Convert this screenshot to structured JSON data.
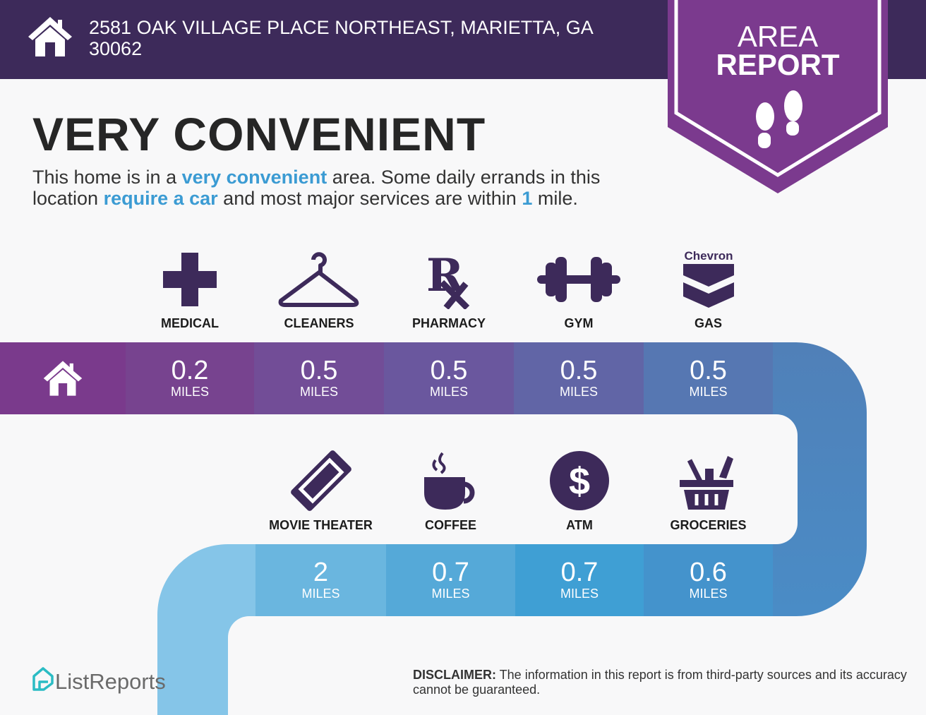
{
  "header": {
    "address": "2581 OAK VILLAGE PLACE NORTHEAST, MARIETTA, GA 30062",
    "icon": "home-icon"
  },
  "badge": {
    "line1": "AREA",
    "line2": "REPORT",
    "icon": "footprints-icon"
  },
  "rating": {
    "title": "VERY CONVENIENT",
    "desc_parts": [
      "This home is in a ",
      "very convenient",
      " area. Some daily errands in this location ",
      "require a car",
      " and most major services are within ",
      "1",
      " mile."
    ]
  },
  "unit": "MILES",
  "top_row": [
    {
      "label": "MEDICAL",
      "value": "0.2",
      "icon": "medical-cross-icon"
    },
    {
      "label": "CLEANERS",
      "value": "0.5",
      "icon": "hanger-icon"
    },
    {
      "label": "PHARMACY",
      "value": "0.5",
      "icon": "rx-icon"
    },
    {
      "label": "GYM",
      "value": "0.5",
      "icon": "dumbbell-icon"
    },
    {
      "label": "GAS",
      "value": "0.5",
      "icon": "chevron-logo-icon",
      "brand": "Chevron"
    }
  ],
  "bottom_row": [
    {
      "label": "MOVIE THEATER",
      "value": "2",
      "icon": "ticket-icon"
    },
    {
      "label": "COFFEE",
      "value": "0.7",
      "icon": "coffee-cup-icon"
    },
    {
      "label": "ATM",
      "value": "0.7",
      "icon": "dollar-icon"
    },
    {
      "label": "GROCERIES",
      "value": "0.6",
      "icon": "grocery-basket-icon"
    }
  ],
  "footer": {
    "logo": "ListReports",
    "disclaimer_label": "DISCLAIMER:",
    "disclaimer": " The information in this report is from third-party sources and its accuracy cannot be guaranteed."
  },
  "colors": {
    "header": "#3d2a5a",
    "badge": "#7b3a8e",
    "accent": "#3b9bd3",
    "icon": "#3d2a5a"
  }
}
